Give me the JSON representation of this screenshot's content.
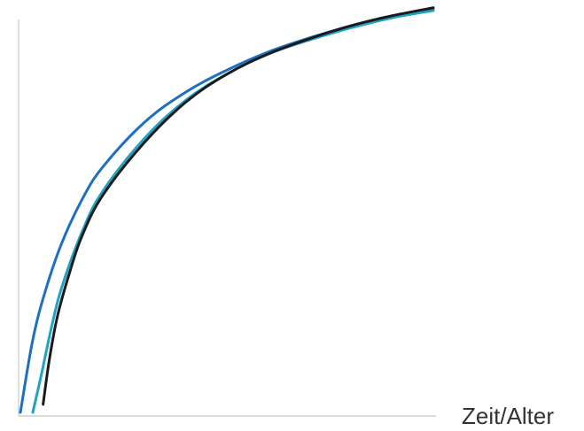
{
  "chart_data": {
    "type": "line",
    "xlabel": "Zeit/Alter",
    "ylabel": "",
    "grid": false,
    "legend": "none",
    "xlim": [
      0,
      100
    ],
    "ylim": [
      0,
      100
    ],
    "series": [
      {
        "color": "#1e6fbf",
        "x": [
          0,
          3,
          6,
          10,
          15,
          20,
          30,
          40,
          50,
          60,
          70,
          80,
          90,
          100
        ],
        "y": [
          0,
          18,
          30,
          42,
          53,
          61,
          72,
          79.5,
          85,
          89.5,
          93,
          96,
          98.5,
          100
        ]
      },
      {
        "color": "#1fa3c4",
        "x": [
          3,
          5,
          7.5,
          10,
          15,
          20,
          30,
          40,
          50,
          60,
          70,
          80,
          90,
          100
        ],
        "y": [
          0,
          9,
          21,
          31,
          45,
          55,
          68,
          77.5,
          84,
          89,
          92.5,
          95.5,
          98,
          99.8
        ]
      },
      {
        "color": "#1a1a1a",
        "x": [
          5.5,
          7,
          9,
          12,
          15,
          20,
          30,
          40,
          50,
          60,
          70,
          80,
          90,
          100
        ],
        "y": [
          2,
          13,
          24,
          35,
          44,
          54,
          67,
          77,
          84,
          89,
          92.8,
          96,
          98.5,
          100.5
        ]
      }
    ]
  }
}
